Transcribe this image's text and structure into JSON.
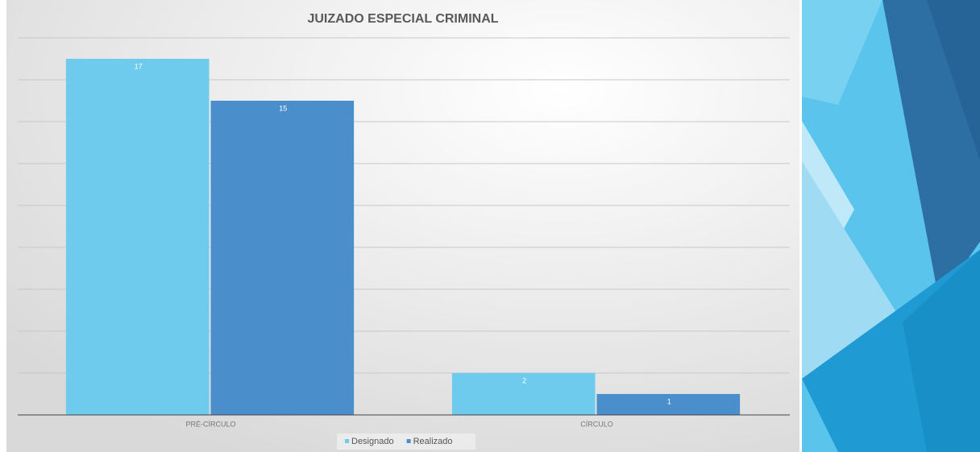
{
  "chart_data": {
    "type": "bar",
    "title": "JUIZADO ESPECIAL CRIMINAL",
    "categories": [
      "PRÉ-CÍRCULO",
      "CÍRCULO"
    ],
    "series": [
      {
        "name": "Designado",
        "color": "#6ecbee",
        "values": [
          17,
          2
        ]
      },
      {
        "name": "Realizado",
        "color": "#4a8fcc",
        "values": [
          15,
          1
        ]
      }
    ],
    "ylim": [
      0,
      18
    ],
    "yticks": [
      0,
      2,
      4,
      6,
      8,
      10,
      12,
      14,
      16,
      18
    ],
    "grid": true,
    "legend": "bottom"
  }
}
